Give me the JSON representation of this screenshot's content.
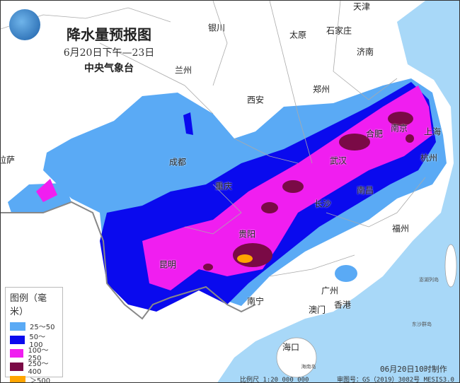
{
  "header": {
    "title": "降水量预报图",
    "period": "6月20日下午—23日",
    "issuer": "中央气象台"
  },
  "legend": {
    "title": "图例（毫米）",
    "items": [
      {
        "label": "25～50",
        "color": "#5aaaf5"
      },
      {
        "label": "50～100",
        "color": "#0a0aee"
      },
      {
        "label": "100～250",
        "color": "#f01ef0"
      },
      {
        "label": "250～400",
        "color": "#7a0a46"
      },
      {
        "label": "＞500",
        "color": "#ffa500"
      }
    ]
  },
  "cities": [
    "天津",
    "银川",
    "太原",
    "石家庄",
    "济南",
    "兰州",
    "郑州",
    "西安",
    "南京",
    "合肥",
    "上海",
    "成都",
    "武汉",
    "杭州",
    "重庆",
    "南昌",
    "长沙",
    "拉萨",
    "福州",
    "贵阳",
    "昆明",
    "南宁",
    "广州",
    "澳门",
    "香港",
    "海口"
  ],
  "small_labels": [
    "澎湖列岛",
    "东沙群岛",
    "海南岛"
  ],
  "footer": {
    "made": "06月20日10时制作",
    "scale": "比例尺 1:20 000 000",
    "approval": "审图号：GS（2019）3082号 MESIS3.0"
  },
  "colors": {
    "sea": "#a8d8f8",
    "land": "#ffffff",
    "border": "#999999"
  }
}
